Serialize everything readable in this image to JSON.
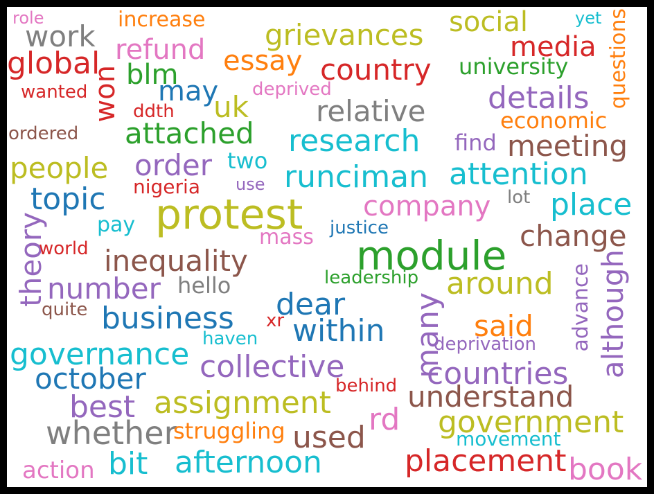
{
  "colors": {
    "red": "#d62728",
    "brown": "#8c564b",
    "pink": "#e377c2",
    "gray": "#7f7f7f",
    "olive": "#bcbd22",
    "cyan": "#17becf",
    "blue": "#1f77b4",
    "orange": "#ff7f0e",
    "green": "#2ca02c",
    "purple": "#9467bd"
  },
  "words": [
    {
      "text": "role",
      "color": "pink"
    },
    {
      "text": "increase",
      "color": "orange"
    },
    {
      "text": "social",
      "color": "olive"
    },
    {
      "text": "yet",
      "color": "cyan"
    },
    {
      "text": "questions",
      "color": "orange"
    },
    {
      "text": "work",
      "color": "gray"
    },
    {
      "text": "grievances",
      "color": "olive"
    },
    {
      "text": "refund",
      "color": "pink"
    },
    {
      "text": "essay",
      "color": "orange"
    },
    {
      "text": "media",
      "color": "red"
    },
    {
      "text": "global",
      "color": "red"
    },
    {
      "text": "country",
      "color": "red"
    },
    {
      "text": "university",
      "color": "green"
    },
    {
      "text": "blm",
      "color": "green"
    },
    {
      "text": "won",
      "color": "red"
    },
    {
      "text": "may",
      "color": "blue"
    },
    {
      "text": "wanted",
      "color": "red"
    },
    {
      "text": "deprived",
      "color": "pink"
    },
    {
      "text": "uk",
      "color": "olive"
    },
    {
      "text": "details",
      "color": "purple"
    },
    {
      "text": "ddth",
      "color": "red"
    },
    {
      "text": "relative",
      "color": "gray"
    },
    {
      "text": "economic",
      "color": "orange"
    },
    {
      "text": "ordered",
      "color": "brown"
    },
    {
      "text": "attached",
      "color": "green"
    },
    {
      "text": "research",
      "color": "cyan"
    },
    {
      "text": "find",
      "color": "purple"
    },
    {
      "text": "meeting",
      "color": "brown"
    },
    {
      "text": "two",
      "color": "cyan"
    },
    {
      "text": "people",
      "color": "olive"
    },
    {
      "text": "order",
      "color": "purple"
    },
    {
      "text": "runciman",
      "color": "cyan"
    },
    {
      "text": "attention",
      "color": "cyan"
    },
    {
      "text": "nigeria",
      "color": "red"
    },
    {
      "text": "use",
      "color": "purple"
    },
    {
      "text": "topic",
      "color": "blue"
    },
    {
      "text": "lot",
      "color": "gray"
    },
    {
      "text": "protest",
      "color": "olive"
    },
    {
      "text": "company",
      "color": "pink"
    },
    {
      "text": "place",
      "color": "cyan"
    },
    {
      "text": "theory",
      "color": "purple"
    },
    {
      "text": "pay",
      "color": "cyan"
    },
    {
      "text": "justice",
      "color": "blue"
    },
    {
      "text": "mass",
      "color": "pink"
    },
    {
      "text": "change",
      "color": "brown"
    },
    {
      "text": "world",
      "color": "red"
    },
    {
      "text": "module",
      "color": "green"
    },
    {
      "text": "inequality",
      "color": "brown"
    },
    {
      "text": "although",
      "color": "purple"
    },
    {
      "text": "advance",
      "color": "purple"
    },
    {
      "text": "leadership",
      "color": "green"
    },
    {
      "text": "number",
      "color": "purple"
    },
    {
      "text": "hello",
      "color": "gray"
    },
    {
      "text": "around",
      "color": "olive"
    },
    {
      "text": "quite",
      "color": "brown"
    },
    {
      "text": "dear",
      "color": "blue"
    },
    {
      "text": "many",
      "color": "purple"
    },
    {
      "text": "business",
      "color": "blue"
    },
    {
      "text": "xr",
      "color": "red"
    },
    {
      "text": "said",
      "color": "orange"
    },
    {
      "text": "within",
      "color": "blue"
    },
    {
      "text": "haven",
      "color": "cyan"
    },
    {
      "text": "deprivation",
      "color": "purple"
    },
    {
      "text": "governance",
      "color": "cyan"
    },
    {
      "text": "collective",
      "color": "purple"
    },
    {
      "text": "countries",
      "color": "purple"
    },
    {
      "text": "october",
      "color": "blue"
    },
    {
      "text": "behind",
      "color": "red"
    },
    {
      "text": "understand",
      "color": "brown"
    },
    {
      "text": "best",
      "color": "purple"
    },
    {
      "text": "assignment",
      "color": "olive"
    },
    {
      "text": "rd",
      "color": "pink"
    },
    {
      "text": "government",
      "color": "olive"
    },
    {
      "text": "whether",
      "color": "gray"
    },
    {
      "text": "struggling",
      "color": "orange"
    },
    {
      "text": "used",
      "color": "brown"
    },
    {
      "text": "movement",
      "color": "cyan"
    },
    {
      "text": "placement",
      "color": "red"
    },
    {
      "text": "bit",
      "color": "cyan"
    },
    {
      "text": "afternoon",
      "color": "cyan"
    },
    {
      "text": "book",
      "color": "pink"
    },
    {
      "text": "action",
      "color": "pink"
    }
  ]
}
